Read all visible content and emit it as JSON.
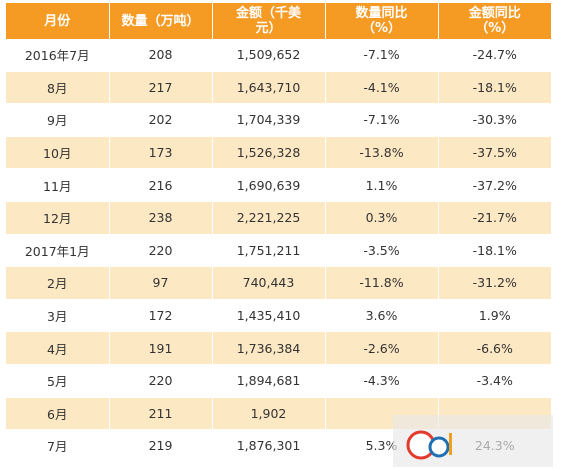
{
  "table": {
    "headers": [
      {
        "lines": [
          "月份",
          ""
        ]
      },
      {
        "lines": [
          "数量（万吨）",
          ""
        ]
      },
      {
        "lines": [
          "金额（千美",
          "元）"
        ]
      },
      {
        "lines": [
          "数量同比",
          "（%）"
        ]
      },
      {
        "lines": [
          "金额同比",
          "（%）"
        ]
      }
    ],
    "rows": [
      [
        "2016年7月",
        "208",
        "1,509,652",
        "-7.1%",
        "-24.7%"
      ],
      [
        "8月",
        "217",
        "1,643,710",
        "-4.1%",
        "-18.1%"
      ],
      [
        "9月",
        "202",
        "1,704,339",
        "-7.1%",
        "-30.3%"
      ],
      [
        "10月",
        "173",
        "1,526,328",
        "-13.8%",
        "-37.5%"
      ],
      [
        "11月",
        "216",
        "1,690,639",
        "1.1%",
        "-37.2%"
      ],
      [
        "12月",
        "238",
        "2,221,225",
        "0.3%",
        "-21.7%"
      ],
      [
        "2017年1月",
        "220",
        "1,751,211",
        "-3.5%",
        "-18.1%"
      ],
      [
        "2月",
        "97",
        "740,443",
        "-11.8%",
        "-31.2%"
      ],
      [
        "3月",
        "172",
        "1,435,410",
        "3.6%",
        "1.9%"
      ],
      [
        "4月",
        "191",
        "1,736,384",
        "-2.6%",
        "-6.6%"
      ],
      [
        "5月",
        "220",
        "1,894,681",
        "-4.3%",
        "-3.4%"
      ],
      [
        "6月",
        "211",
        "1,902",
        "",
        ""
      ],
      [
        "7月",
        "219",
        "1,876,301",
        "5.3%",
        "24.3%"
      ]
    ]
  },
  "watermark": {
    "logo_icon": "cd-logo-icon"
  }
}
